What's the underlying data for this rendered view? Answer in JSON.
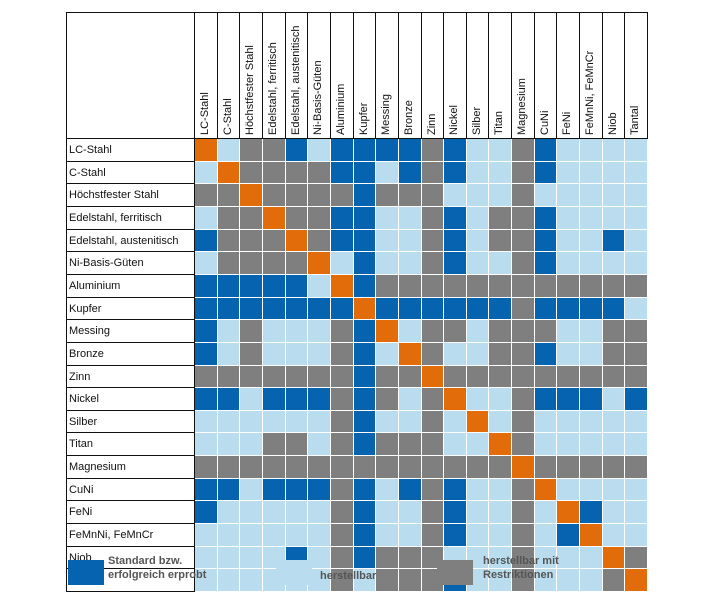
{
  "chart_data": {
    "type": "heatmap",
    "title": "",
    "materials": [
      "LC-Stahl",
      "C-Stahl",
      "Höchstfester Stahl",
      "Edelstahl, ferritisch",
      "Edelstahl, austenitisch",
      "Ni-Basis-Güten",
      "Aluminium",
      "Kupfer",
      "Messing",
      "Bronze",
      "Zinn",
      "Nickel",
      "Silber",
      "Titan",
      "Magnesium",
      "CuNi",
      "FeNi",
      "FeMnNi, FeMnCr",
      "Niob",
      "Tantal"
    ],
    "legend": [
      {
        "code": "S",
        "label": "Standard bzw. erfolgreich erprobt",
        "color": "#0563AF"
      },
      {
        "code": "H",
        "label": "herstellbar",
        "color": "#B9DDEE"
      },
      {
        "code": "R",
        "label": "herstellbar mit Restriktionen",
        "color": "#7F7F7F"
      },
      {
        "code": "X",
        "label": "",
        "color": "#E36C0A"
      }
    ],
    "matrix": [
      "XHRRSHSSSSRSHHRSHHHH",
      "HXRRRRSSHSRSHHRSHHHH",
      "RRXRRRRSRRRHHHRHHHHH",
      "HRRXRRSSHHRSHRRSHHHH",
      "SRRRXRSSHHRSHRRSHHSH",
      "HRRRRXHSHHRSHHRSHHHH",
      "SSSSSHXSRRRRRRRRRRRR",
      "SSSSSSSXSSSSSSRSSSSH",
      "SHRHHHRSXHRRHRRRHHRR",
      "SHRHHHRSHXRHHRRSHHRR",
      "RRRRRRRSRRXRRRRRRRRR",
      "SSHSSSRSRHRXHHRSSSHS",
      "HHHHHHRSHHRHXHRHHHHH",
      "HHHRRHRSRRRHHXRHHHHH",
      "RRRRRRRRRRRRRRXRRRRR",
      "SSHSSSRSHSRSHHRXHHHH",
      "SHHHHHRSHHRSHHRHXSHH",
      "HHHHHHRSHHRSHHRHSXHH",
      "HHHHSHRSRRRHHHRHHHXR",
      "HHHHHHRHRRRSHHRHHHRX"
    ]
  }
}
